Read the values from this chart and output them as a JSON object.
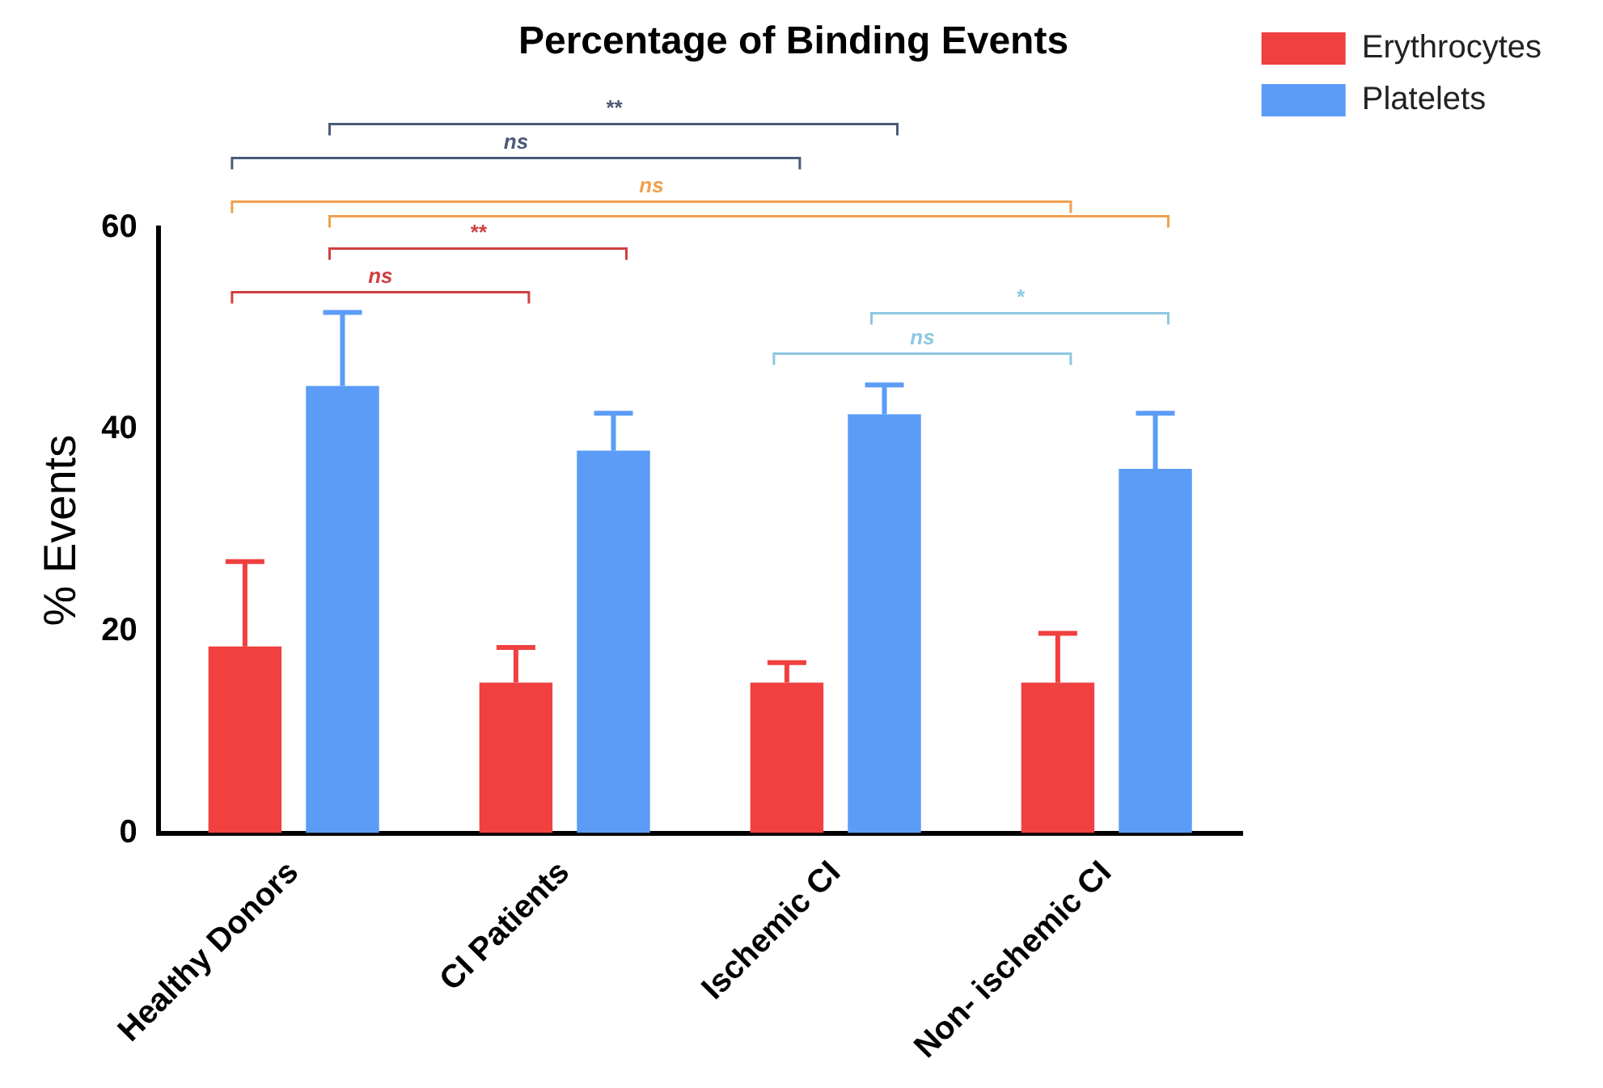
{
  "chart_data": {
    "type": "bar",
    "title": "Percentage of Binding Events",
    "ylabel": "% Events",
    "categories": [
      "Healthy Donors",
      "CI Patients",
      "Ischemic CI",
      "Non- ischemic CI"
    ],
    "series": [
      {
        "name": "Erythrocytes",
        "color": "#f04040",
        "values": [
          18.5,
          14.9,
          14.9,
          14.9
        ],
        "errors": [
          [
            18.5,
            26.9
          ],
          [
            14.9,
            18.4
          ],
          [
            14.9,
            16.9
          ],
          [
            14.9,
            19.8
          ]
        ]
      },
      {
        "name": "Platelets",
        "color": "#5b9cf6",
        "values": [
          44.3,
          37.9,
          41.5,
          36.1
        ],
        "errors": [
          [
            44.3,
            51.6
          ],
          [
            37.9,
            41.6
          ],
          [
            41.5,
            44.4
          ],
          [
            36.1,
            41.6
          ]
        ]
      }
    ],
    "ylim": [
      0,
      60
    ],
    "yticks": [
      0,
      20,
      40,
      60
    ],
    "grid": false,
    "legend": "top right",
    "annotations": [
      "**",
      "ns",
      "ns",
      "**",
      "ns",
      "*",
      "ns"
    ]
  }
}
